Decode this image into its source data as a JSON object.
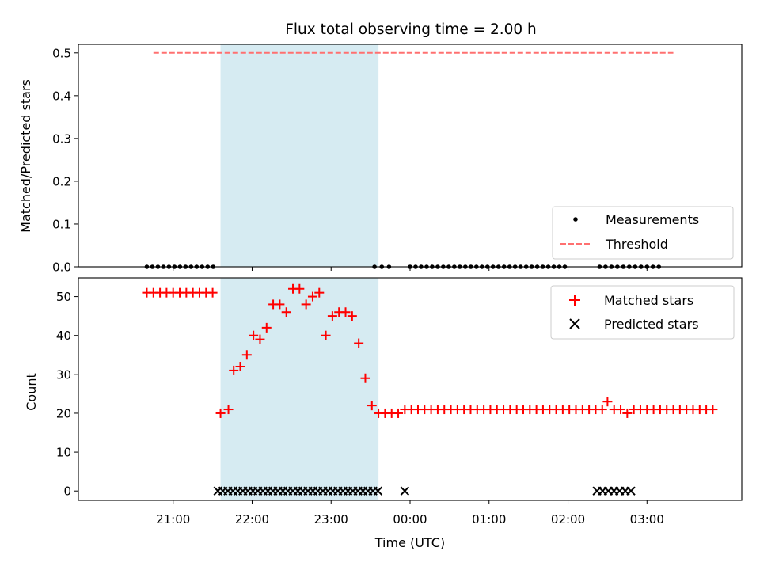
{
  "chart_data": {
    "title": "Flux total observing time = 2.00 h",
    "xlabel": "Time (UTC)",
    "x_ticks": [
      "21:00",
      "22:00",
      "23:00",
      "00:00",
      "01:00",
      "02:00",
      "03:00"
    ],
    "shaded_region": {
      "start": "21:36",
      "end": "23:36",
      "color": "#add8e6"
    },
    "panels": [
      {
        "type": "scatter",
        "ylabel": "Matched/Predicted stars",
        "ylim": [
          0,
          0.52
        ],
        "y_ticks": [
          "0.0",
          "0.1",
          "0.2",
          "0.3",
          "0.4",
          "0.5"
        ],
        "legend_position": "lower right",
        "series": [
          {
            "name": "Measurements",
            "marker": "dot",
            "color": "#000000",
            "segments": [
              {
                "start_min": 1240,
                "end_min": 1292,
                "step": 4.2,
                "value": 0.0
              },
              {
                "start_min": 1413,
                "end_min": 1424,
                "step": 5.5,
                "value": 0.0
              },
              {
                "start_min": 1440,
                "end_min": 1560,
                "step": 4.2,
                "value": 0.0
              },
              {
                "start_min": 1584,
                "end_min": 1629,
                "step": 4.5,
                "value": 0.0
              }
            ]
          },
          {
            "name": "Threshold",
            "type": "line",
            "style": "dashed",
            "color": "#ff7070",
            "x": [
              "20:45",
              "03:20"
            ],
            "y": [
              0.5,
              0.5
            ]
          }
        ]
      },
      {
        "type": "scatter",
        "ylabel": "Count",
        "ylim": [
          -2.4,
          54.8
        ],
        "y_ticks": [
          "0",
          "10",
          "20",
          "30",
          "40",
          "50"
        ],
        "legend_position": "upper right",
        "series": [
          {
            "name": "Matched stars",
            "marker": "plus",
            "color": "#ff0000",
            "points": [
              [
                1240,
                51
              ],
              [
                1245,
                51
              ],
              [
                1250,
                51
              ],
              [
                1255,
                51
              ],
              [
                1260,
                51
              ],
              [
                1265,
                51
              ],
              [
                1270,
                51
              ],
              [
                1275,
                51
              ],
              [
                1280,
                51
              ],
              [
                1285,
                51
              ],
              [
                1290,
                51
              ],
              [
                1296,
                20
              ],
              [
                1302,
                21
              ],
              [
                1306,
                31
              ],
              [
                1311,
                32
              ],
              [
                1316,
                35
              ],
              [
                1321,
                40
              ],
              [
                1326,
                39
              ],
              [
                1331,
                42
              ],
              [
                1336,
                48
              ],
              [
                1341,
                48
              ],
              [
                1346,
                46
              ],
              [
                1351,
                52
              ],
              [
                1356,
                52
              ],
              [
                1361,
                48
              ],
              [
                1366,
                50
              ],
              [
                1371,
                51
              ],
              [
                1376,
                40
              ],
              [
                1381,
                45
              ],
              [
                1386,
                46
              ],
              [
                1391,
                46
              ],
              [
                1396,
                45
              ],
              [
                1401,
                38
              ],
              [
                1406,
                29
              ],
              [
                1411,
                22
              ],
              [
                1416,
                20
              ],
              [
                1421,
                20
              ],
              [
                1426,
                20
              ],
              [
                1431,
                20
              ],
              [
                1436,
                21
              ],
              [
                1441,
                21
              ],
              [
                1446,
                21
              ],
              [
                1451,
                21
              ],
              [
                1456,
                21
              ],
              [
                1461,
                21
              ],
              [
                1466,
                21
              ],
              [
                1471,
                21
              ],
              [
                1476,
                21
              ],
              [
                1481,
                21
              ],
              [
                1486,
                21
              ],
              [
                1491,
                21
              ],
              [
                1496,
                21
              ],
              [
                1501,
                21
              ],
              [
                1506,
                21
              ],
              [
                1511,
                21
              ],
              [
                1516,
                21
              ],
              [
                1521,
                21
              ],
              [
                1526,
                21
              ],
              [
                1531,
                21
              ],
              [
                1536,
                21
              ],
              [
                1541,
                21
              ],
              [
                1546,
                21
              ],
              [
                1551,
                21
              ],
              [
                1556,
                21
              ],
              [
                1561,
                21
              ],
              [
                1566,
                21
              ],
              [
                1571,
                21
              ],
              [
                1576,
                21
              ],
              [
                1581,
                21
              ],
              [
                1586,
                21
              ],
              [
                1590,
                23
              ],
              [
                1595,
                21
              ],
              [
                1600,
                21
              ],
              [
                1605,
                20
              ],
              [
                1610,
                21
              ],
              [
                1615,
                21
              ],
              [
                1620,
                21
              ],
              [
                1625,
                21
              ],
              [
                1630,
                21
              ],
              [
                1635,
                21
              ],
              [
                1640,
                21
              ],
              [
                1645,
                21
              ],
              [
                1650,
                21
              ],
              [
                1655,
                21
              ],
              [
                1660,
                21
              ],
              [
                1665,
                21
              ],
              [
                1670,
                21
              ]
            ]
          },
          {
            "name": "Predicted stars",
            "marker": "x",
            "color": "#000000",
            "segments": [
              {
                "start_min": 1294,
                "end_min": 1416,
                "step": 3.8,
                "value": 0
              },
              {
                "start_min": 1436,
                "end_min": 1436,
                "step": 1,
                "value": 0
              },
              {
                "start_min": 1582,
                "end_min": 1612,
                "step": 4.3,
                "value": 0
              }
            ]
          }
        ]
      }
    ]
  }
}
